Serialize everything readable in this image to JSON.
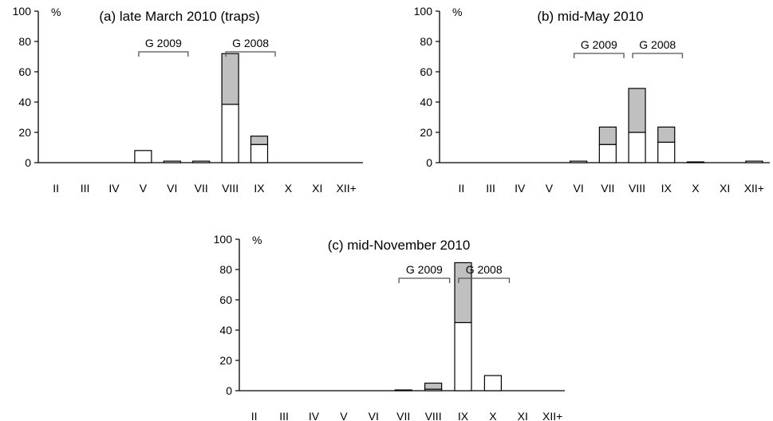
{
  "chart_data": [
    {
      "type": "bar",
      "stacked": true,
      "title": "(a) late March 2010 (traps)",
      "ylabel": "%",
      "ylim": [
        0,
        100
      ],
      "yticks": [
        0,
        20,
        40,
        60,
        80,
        100
      ],
      "categories": [
        "II",
        "III",
        "IV",
        "V",
        "VI",
        "VII",
        "VIII",
        "IX",
        "X",
        "XI",
        "XII+"
      ],
      "series": [
        {
          "color": "#ffffff",
          "values": [
            0,
            0,
            0,
            8,
            1,
            1,
            38.5,
            12,
            0,
            0,
            0
          ]
        },
        {
          "color": "#c0c0c0",
          "values": [
            0,
            0,
            0,
            0,
            0,
            0,
            33.5,
            5.5,
            0,
            0,
            0
          ]
        }
      ],
      "annotations": [
        {
          "label": "G 2009",
          "from": "V",
          "to": "VI"
        },
        {
          "label": "G 2008",
          "from": "VIII",
          "to": "IX"
        }
      ]
    },
    {
      "type": "bar",
      "stacked": true,
      "title": "(b) mid-May 2010",
      "ylabel": "%",
      "ylim": [
        0,
        100
      ],
      "yticks": [
        0,
        20,
        40,
        60,
        80,
        100
      ],
      "categories": [
        "II",
        "III",
        "IV",
        "V",
        "VI",
        "VII",
        "VIII",
        "IX",
        "X",
        "XI",
        "XII+"
      ],
      "series": [
        {
          "color": "#ffffff",
          "values": [
            0,
            0,
            0,
            0,
            1,
            12,
            20,
            13.5,
            0.5,
            0,
            1
          ]
        },
        {
          "color": "#c0c0c0",
          "values": [
            0,
            0,
            0,
            0,
            0,
            11.5,
            29,
            10,
            0,
            0,
            0
          ]
        }
      ],
      "annotations": [
        {
          "label": "G 2009",
          "from": "VI",
          "to": "VII"
        },
        {
          "label": "G 2008",
          "from": "VIII",
          "to": "IX"
        }
      ]
    },
    {
      "type": "bar",
      "stacked": true,
      "title": "(c) mid-November 2010",
      "ylabel": "%",
      "ylim": [
        0,
        100
      ],
      "yticks": [
        0,
        20,
        40,
        60,
        80,
        100
      ],
      "categories": [
        "II",
        "III",
        "IV",
        "V",
        "VI",
        "VII",
        "VIII",
        "IX",
        "X",
        "XI",
        "XII+"
      ],
      "series": [
        {
          "color": "#ffffff",
          "values": [
            0,
            0,
            0,
            0,
            0,
            0.5,
            1,
            45,
            10,
            0,
            0
          ]
        },
        {
          "color": "#c0c0c0",
          "values": [
            0,
            0,
            0,
            0,
            0,
            0,
            4,
            39.5,
            0,
            0,
            0
          ]
        }
      ],
      "annotations": [
        {
          "label": "G 2009",
          "from": "VII",
          "to": "VIII"
        },
        {
          "label": "G 2008",
          "from": "IX",
          "to": "X"
        }
      ]
    }
  ]
}
